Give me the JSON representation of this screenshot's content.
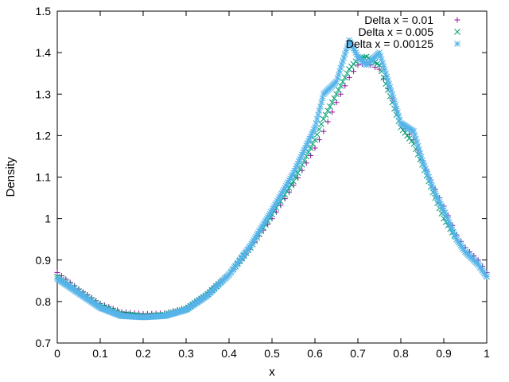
{
  "chart_data": {
    "type": "scatter",
    "title": "",
    "xlabel": "x",
    "ylabel": "Density",
    "xlim": [
      0,
      1
    ],
    "ylim": [
      0.7,
      1.5
    ],
    "xticks": [
      "0",
      "0.1",
      "0.2",
      "0.3",
      "0.4",
      "0.5",
      "0.6",
      "0.7",
      "0.8",
      "0.9",
      "1"
    ],
    "yticks": [
      "0.7",
      "0.8",
      "0.9",
      "1",
      "1.1",
      "1.2",
      "1.3",
      "1.4",
      "1.5"
    ],
    "grid": false,
    "legend_position": "top-right",
    "series": [
      {
        "name": "Delta x = 0.01",
        "marker": "plus",
        "color": "#94109c",
        "x": [
          0,
          0.05,
          0.1,
          0.15,
          0.2,
          0.25,
          0.3,
          0.35,
          0.4,
          0.45,
          0.5,
          0.55,
          0.6,
          0.62,
          0.65,
          0.68,
          0.7,
          0.72,
          0.75,
          0.78,
          0.8,
          0.83,
          0.85,
          0.88,
          0.9,
          0.93,
          0.95,
          0.98,
          1
        ],
        "y": [
          0.87,
          0.83,
          0.795,
          0.775,
          0.77,
          0.772,
          0.785,
          0.82,
          0.865,
          0.93,
          1.0,
          1.08,
          1.17,
          1.21,
          1.28,
          1.34,
          1.37,
          1.375,
          1.36,
          1.29,
          1.23,
          1.19,
          1.14,
          1.07,
          1.03,
          0.96,
          0.93,
          0.9,
          0.87
        ]
      },
      {
        "name": "Delta x = 0.005",
        "marker": "cross",
        "color": "#009e73",
        "x": [
          0,
          0.05,
          0.1,
          0.15,
          0.2,
          0.25,
          0.3,
          0.35,
          0.4,
          0.45,
          0.5,
          0.55,
          0.6,
          0.62,
          0.65,
          0.68,
          0.7,
          0.72,
          0.75,
          0.78,
          0.8,
          0.83,
          0.85,
          0.88,
          0.9,
          0.93,
          0.95,
          0.98,
          1
        ],
        "y": [
          0.86,
          0.825,
          0.79,
          0.77,
          0.765,
          0.768,
          0.782,
          0.818,
          0.865,
          0.93,
          1.01,
          1.09,
          1.19,
          1.24,
          1.3,
          1.36,
          1.385,
          1.39,
          1.37,
          1.28,
          1.22,
          1.18,
          1.13,
          1.05,
          1.0,
          0.95,
          0.92,
          0.89,
          0.86
        ]
      },
      {
        "name": "Delta x = 0.00125",
        "marker": "star",
        "color": "#56b4e9",
        "x": [
          0,
          0.05,
          0.1,
          0.15,
          0.2,
          0.25,
          0.3,
          0.35,
          0.4,
          0.45,
          0.5,
          0.55,
          0.6,
          0.62,
          0.65,
          0.68,
          0.7,
          0.72,
          0.75,
          0.78,
          0.8,
          0.83,
          0.85,
          0.88,
          0.9,
          0.93,
          0.95,
          0.98,
          1
        ],
        "y": [
          0.855,
          0.82,
          0.785,
          0.765,
          0.762,
          0.765,
          0.78,
          0.815,
          0.865,
          0.935,
          1.02,
          1.11,
          1.22,
          1.3,
          1.33,
          1.43,
          1.39,
          1.37,
          1.4,
          1.3,
          1.23,
          1.21,
          1.14,
          1.06,
          1.02,
          0.95,
          0.92,
          0.89,
          0.86
        ]
      }
    ]
  }
}
